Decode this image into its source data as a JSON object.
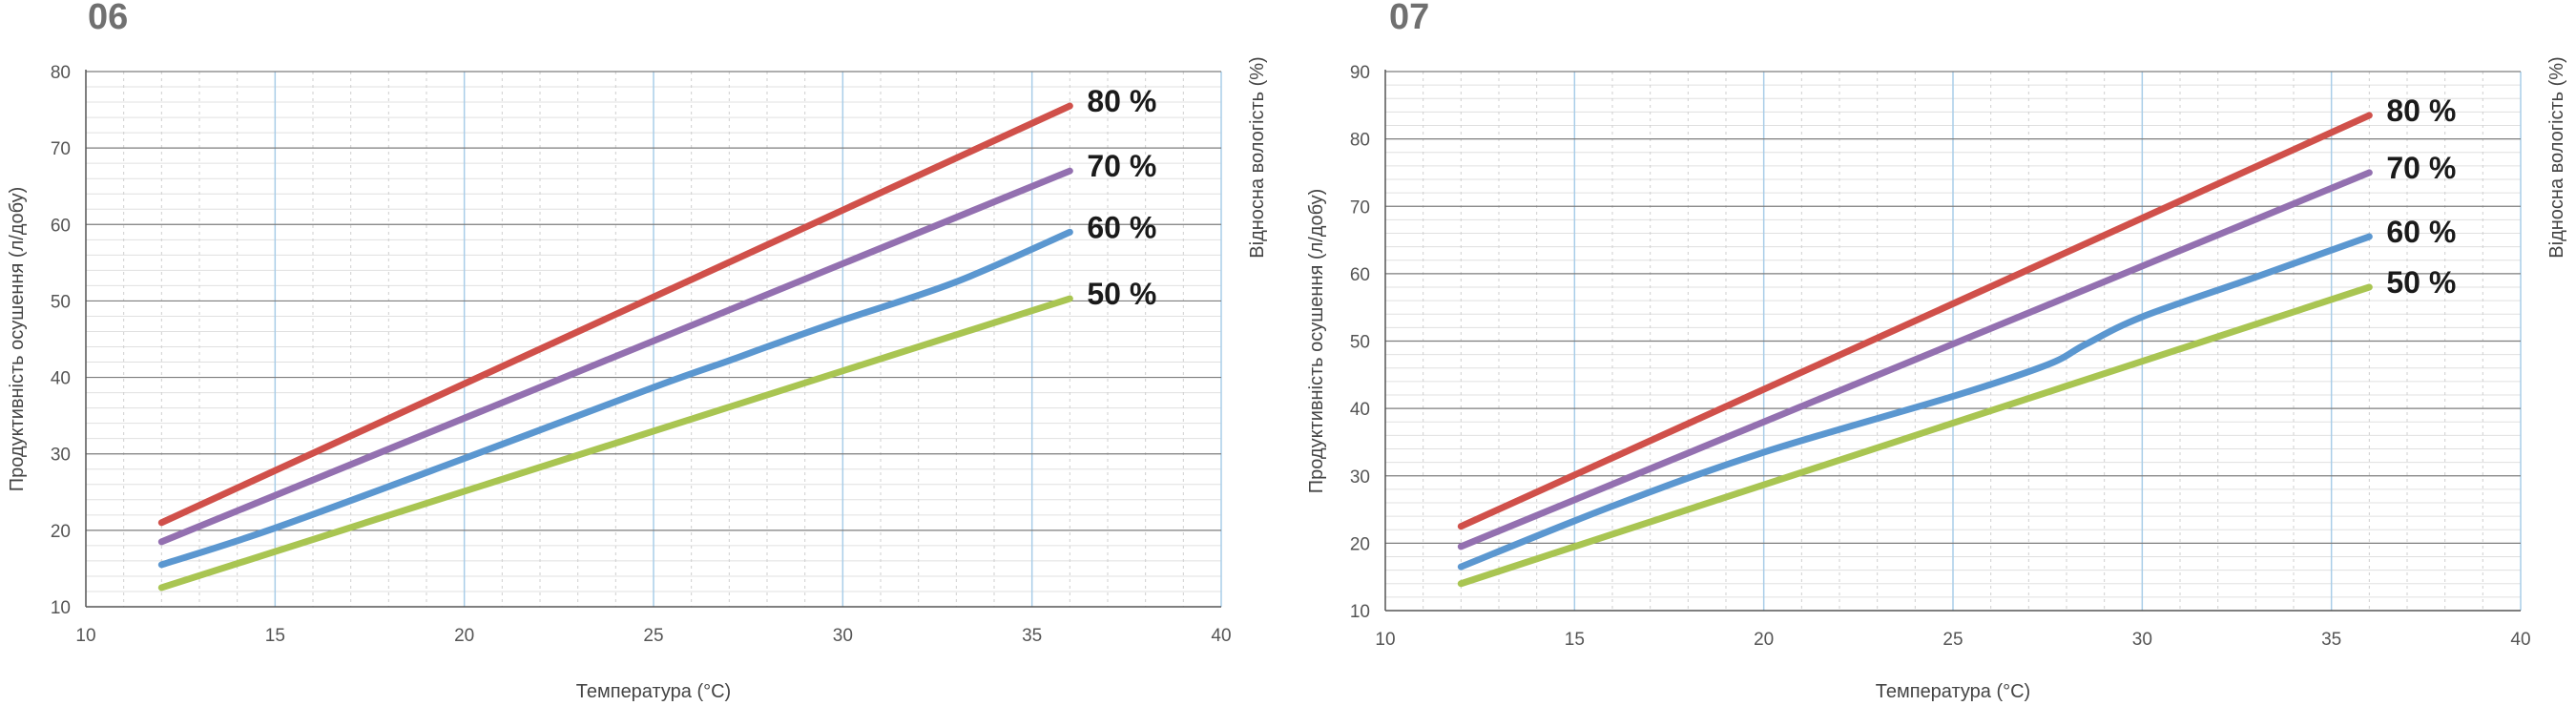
{
  "chart_data": [
    {
      "type": "line",
      "title": "06",
      "xlabel": "Температура (°C)",
      "ylabel": "Продуктивність осушення (л/добу)",
      "y2label": "Відносна вологість (%)",
      "xlim": [
        10,
        40
      ],
      "ylim": [
        10,
        80
      ],
      "xticks": [
        10,
        15,
        20,
        25,
        30,
        35,
        40
      ],
      "yticks": [
        10,
        20,
        30,
        40,
        50,
        60,
        70,
        80
      ],
      "grid": true,
      "series": [
        {
          "name": "80 %",
          "color": "#d0504a",
          "x": [
            12,
            36
          ],
          "y": [
            21,
            75.5
          ]
        },
        {
          "name": "70 %",
          "color": "#9370b0",
          "x": [
            12,
            36
          ],
          "y": [
            18.5,
            67
          ]
        },
        {
          "name": "60 %",
          "color": "#5b97d0",
          "x": [
            12,
            15,
            20,
            25,
            27,
            28,
            30,
            33,
            36
          ],
          "y": [
            15.5,
            20.3,
            29.4,
            38.7,
            42.2,
            44.0,
            47.5,
            52.5,
            59
          ]
        },
        {
          "name": "50 %",
          "color": "#a9c552",
          "x": [
            12,
            36
          ],
          "y": [
            12.5,
            50.3
          ]
        }
      ]
    },
    {
      "type": "line",
      "title": "07",
      "xlabel": "Температура (°C)",
      "ylabel": "Продуктивність осушення (л/добу)",
      "y2label": "Відносна вологість (%)",
      "xlim": [
        10,
        40
      ],
      "ylim": [
        10,
        90
      ],
      "xticks": [
        10,
        15,
        20,
        25,
        30,
        35,
        40
      ],
      "yticks": [
        10,
        20,
        30,
        40,
        50,
        60,
        70,
        80,
        90
      ],
      "grid": true,
      "series": [
        {
          "name": "80 %",
          "color": "#d0504a",
          "x": [
            12,
            36
          ],
          "y": [
            22.5,
            83.5
          ]
        },
        {
          "name": "70 %",
          "color": "#9370b0",
          "x": [
            12,
            36
          ],
          "y": [
            19.5,
            75
          ]
        },
        {
          "name": "60 %",
          "color": "#5b97d0",
          "x": [
            12,
            16,
            20,
            25,
            27.5,
            28.5,
            30,
            33,
            36
          ],
          "y": [
            16.5,
            25.5,
            33.5,
            41.8,
            46.5,
            49.5,
            53.6,
            59.5,
            65.5
          ]
        },
        {
          "name": "50 %",
          "color": "#a9c552",
          "x": [
            12,
            36
          ],
          "y": [
            14,
            58
          ]
        }
      ]
    }
  ]
}
